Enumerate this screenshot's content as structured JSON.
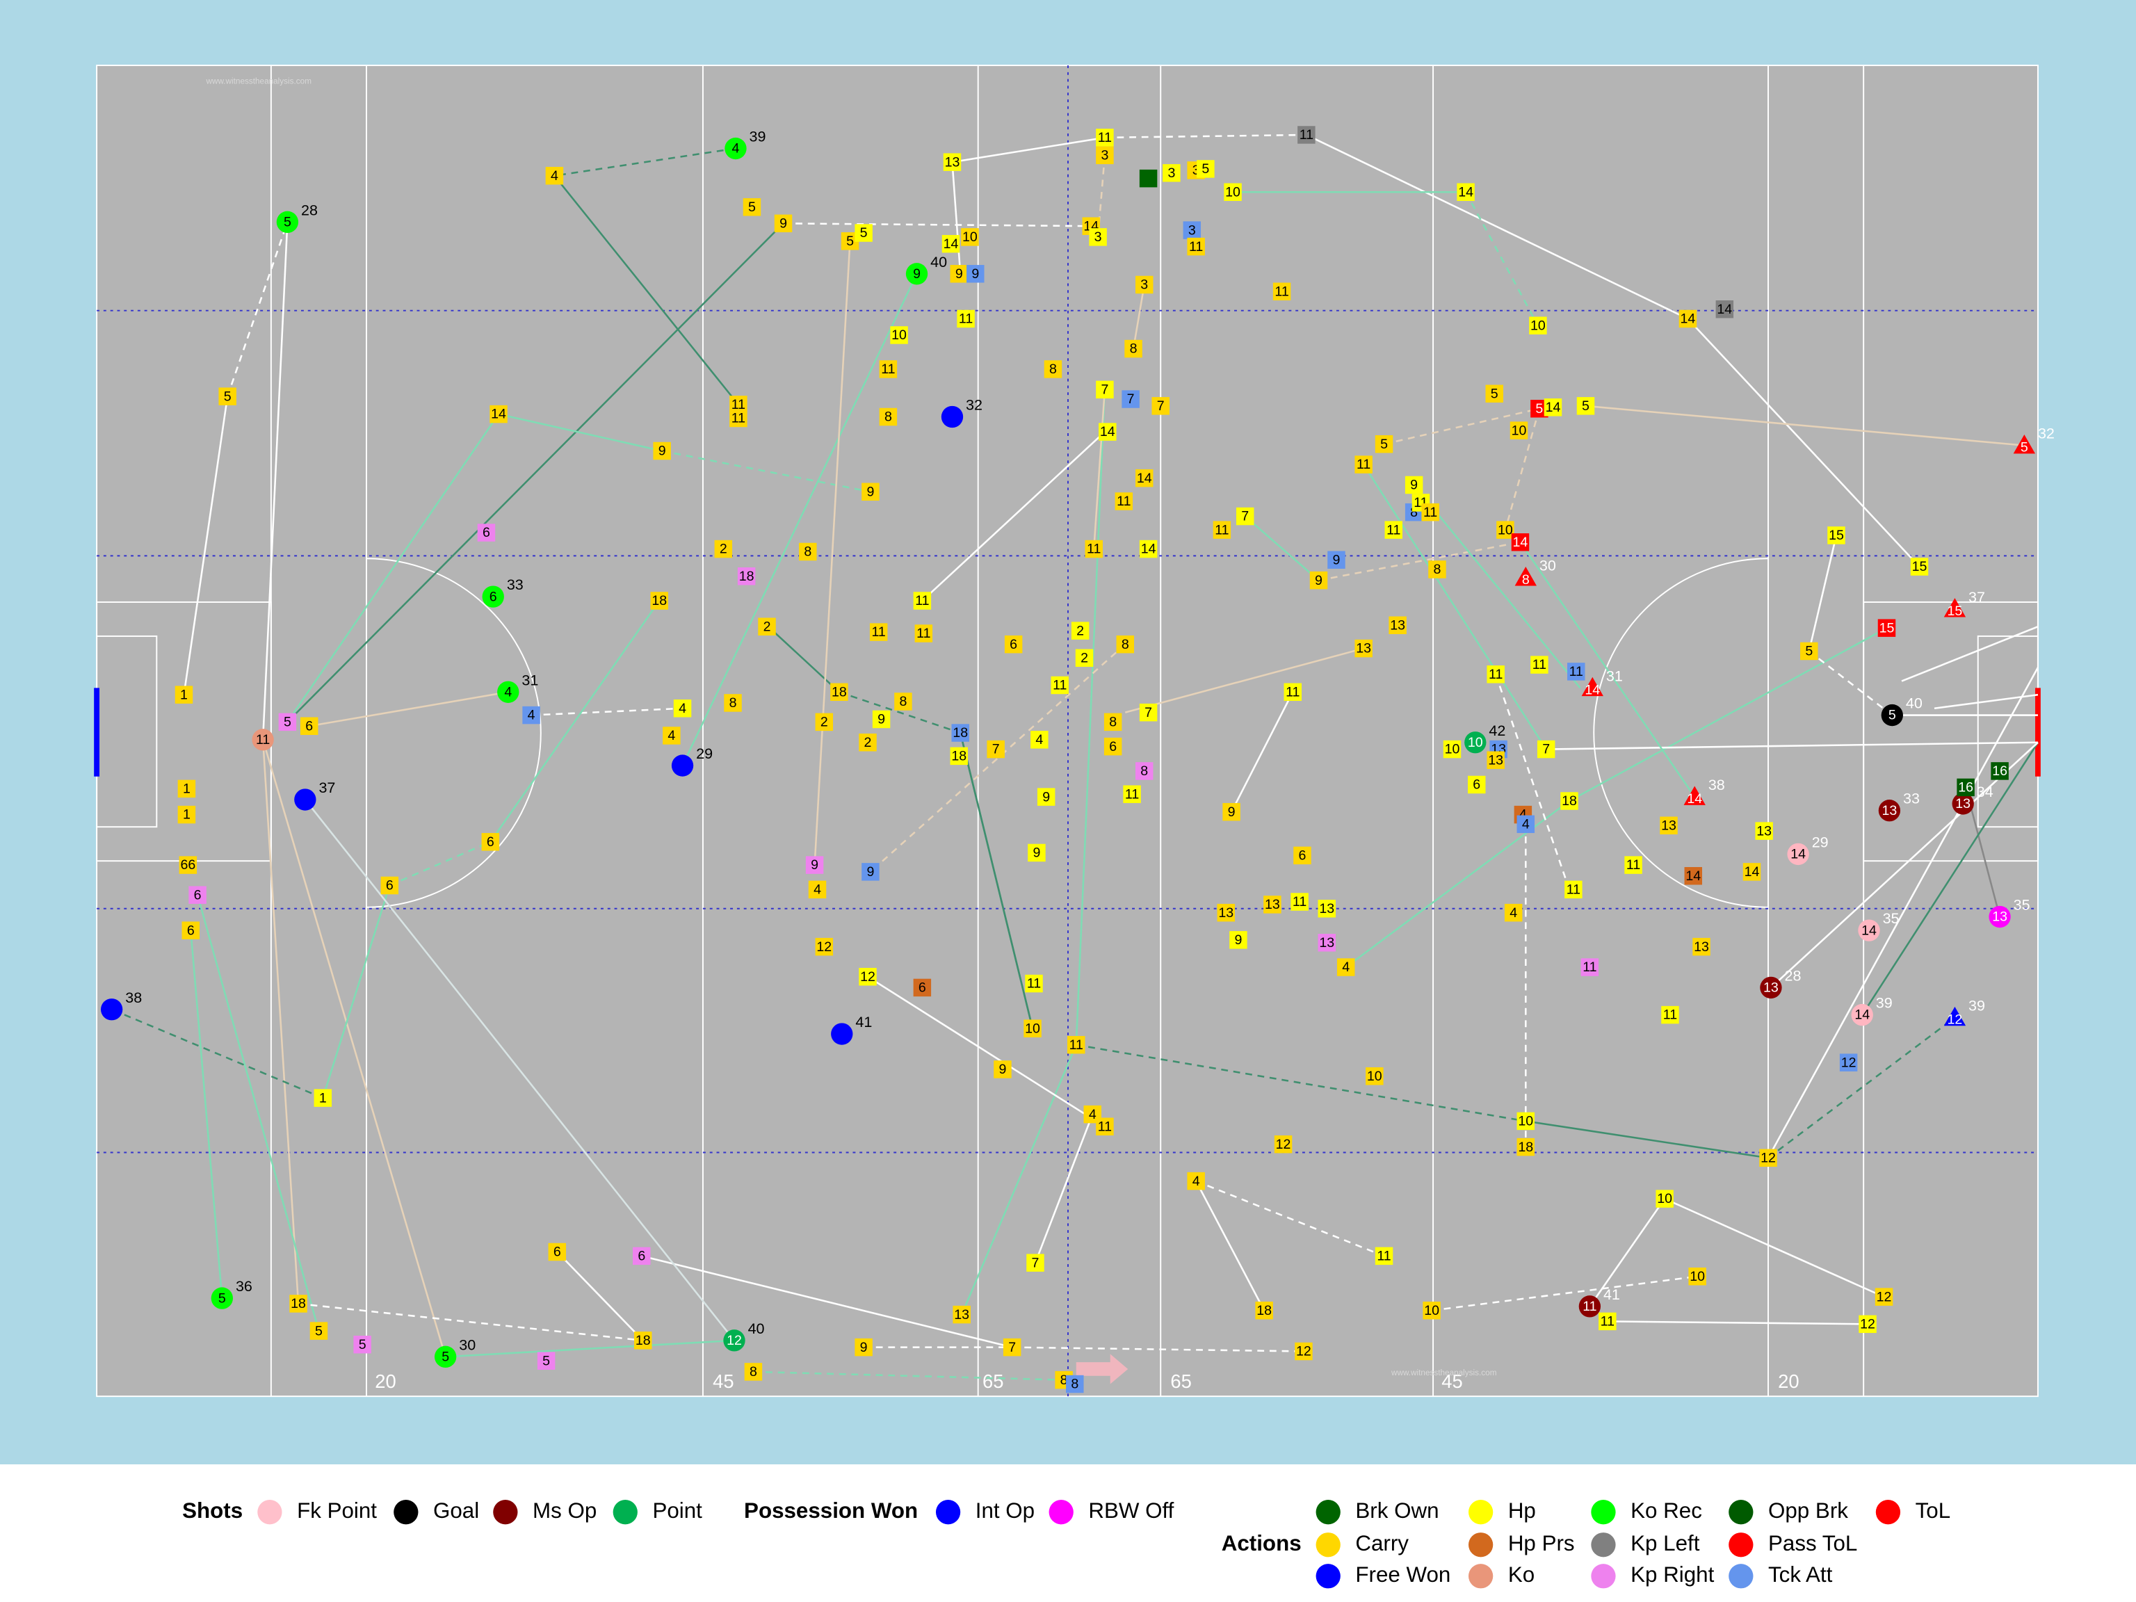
{
  "pitch_labels": [
    "20",
    "45",
    "65",
    "65",
    "45",
    "20"
  ],
  "watermarks": [
    "www.witnesstheanalysis.com",
    "www.witnesstheanalysis.com"
  ],
  "events": [
    {
      "label": "4",
      "color": "#00ff00",
      "minute": "39"
    },
    {
      "label": "4",
      "color": "#ffd700"
    },
    {
      "label": "5",
      "color": "#ffd700"
    },
    {
      "label": "9",
      "color": "#ffd700"
    },
    {
      "label": "5",
      "color": "#00ff00",
      "minute": "28"
    },
    {
      "label": "5",
      "color": "#ffd700"
    },
    {
      "label": "14",
      "color": "#ffd700"
    },
    {
      "label": "9",
      "color": "#ffd700"
    },
    {
      "label": "11",
      "color": "#ffd700"
    },
    {
      "label": "11",
      "color": "#ffd700"
    },
    {
      "label": "6",
      "color": "#ee82ee"
    },
    {
      "label": "6",
      "color": "#00ff00",
      "minute": "33"
    },
    {
      "label": "4",
      "color": "#00ff00",
      "minute": "31"
    },
    {
      "label": "4",
      "color": "#6495ed"
    },
    {
      "label": "1",
      "color": "#ffd700"
    },
    {
      "label": "5",
      "color": "#ee82ee"
    },
    {
      "label": "6",
      "color": "#ffd700"
    },
    {
      "label": "11",
      "color": "#e9967a"
    },
    {
      "color": "#0000ff",
      "minute": "37"
    },
    {
      "label": "1",
      "color": "#ffd700"
    },
    {
      "label": "1",
      "color": "#ffd700"
    },
    {
      "label": "66",
      "color": "#ffd700"
    },
    {
      "label": "6",
      "color": "#ee82ee"
    },
    {
      "label": "6",
      "color": "#ffd700"
    },
    {
      "color": "#0000ff",
      "minute": "38"
    },
    {
      "label": "1",
      "color": "#ffff00"
    },
    {
      "label": "6",
      "color": "#ffd700"
    },
    {
      "label": "6",
      "color": "#ffd700"
    },
    {
      "label": "18",
      "color": "#ffd700"
    },
    {
      "label": "2",
      "color": "#ffd700"
    },
    {
      "label": "18",
      "color": "#ee82ee"
    },
    {
      "label": "2",
      "color": "#ffd700"
    },
    {
      "label": "4",
      "color": "#ffff00"
    },
    {
      "label": "8",
      "color": "#ffd700"
    },
    {
      "label": "4",
      "color": "#ffd700"
    },
    {
      "color": "#0000ff",
      "minute": "29"
    },
    {
      "label": "18",
      "color": "#ffd700"
    },
    {
      "label": "2",
      "color": "#ffd700"
    },
    {
      "label": "9",
      "color": "#ffff00"
    },
    {
      "label": "8",
      "color": "#ffd700"
    },
    {
      "label": "2",
      "color": "#ffd700"
    },
    {
      "label": "18",
      "color": "#6495ed"
    },
    {
      "label": "18",
      "color": "#ffff00"
    },
    {
      "label": "7",
      "color": "#ffd700"
    },
    {
      "label": "4",
      "color": "#ffff00"
    },
    {
      "label": "9",
      "color": "#ee82ee"
    },
    {
      "label": "9",
      "color": "#6495ed"
    },
    {
      "label": "4",
      "color": "#ffd700"
    },
    {
      "label": "12",
      "color": "#ffd700"
    },
    {
      "label": "12",
      "color": "#ffff00"
    },
    {
      "label": "6",
      "color": "#d2691e"
    },
    {
      "color": "#0000ff",
      "minute": "41"
    },
    {
      "label": "9",
      "color": "#ffd700"
    },
    {
      "label": "10",
      "color": "#ffd700"
    },
    {
      "label": "11",
      "color": "#ffff00"
    },
    {
      "label": "9",
      "color": "#ffff00"
    },
    {
      "label": "9",
      "color": "#ffff00"
    },
    {
      "label": "11",
      "color": "#ffd700"
    },
    {
      "label": "4",
      "color": "#ffd700"
    },
    {
      "label": "11",
      "color": "#ffd700"
    },
    {
      "label": "7",
      "color": "#ffff00"
    },
    {
      "label": "7",
      "color": "#ffd700"
    },
    {
      "label": "13",
      "color": "#ffd700"
    },
    {
      "label": "6",
      "color": "#ffd700"
    },
    {
      "label": "6",
      "color": "#ee82ee"
    },
    {
      "label": "18",
      "color": "#ffd700"
    },
    {
      "label": "12",
      "color": "#00b050",
      "minute": "40"
    },
    {
      "label": "8",
      "color": "#ffd700"
    },
    {
      "label": "9",
      "color": "#ffd700"
    },
    {
      "label": "5",
      "color": "#00ff00",
      "minute": "30"
    },
    {
      "label": "5",
      "color": "#ee82ee"
    },
    {
      "label": "5",
      "color": "#ee82ee"
    },
    {
      "label": "5",
      "color": "#ffd700"
    },
    {
      "label": "18",
      "color": "#ffd700"
    },
    {
      "label": "5",
      "color": "#00ff00",
      "minute": "36"
    },
    {
      "label": "8",
      "color": "#ffd700"
    },
    {
      "label": "8",
      "color": "#6495ed"
    },
    {
      "label": "13",
      "color": "#ffff00"
    },
    {
      "label": "11",
      "color": "#ffff00"
    },
    {
      "label": "3",
      "color": "#ffd700"
    },
    {
      "color": "#006400"
    },
    {
      "label": "3",
      "color": "#ffff00"
    },
    {
      "label": "3",
      "color": "#ffd700"
    },
    {
      "label": "5",
      "color": "#ffff00"
    },
    {
      "label": "10",
      "color": "#ffff00"
    },
    {
      "label": "11",
      "color": "#808080"
    },
    {
      "label": "14",
      "color": "#ffff00"
    },
    {
      "label": "5",
      "color": "#ffd700"
    },
    {
      "label": "5",
      "color": "#ffff00"
    },
    {
      "label": "9",
      "color": "#00ff00",
      "minute": "40"
    },
    {
      "label": "14",
      "color": "#ffff00"
    },
    {
      "label": "10",
      "color": "#ffd700"
    },
    {
      "label": "9",
      "color": "#ffd700"
    },
    {
      "label": "9",
      "color": "#6495ed"
    },
    {
      "label": "14",
      "color": "#ffd700"
    },
    {
      "label": "3",
      "color": "#ffff00"
    },
    {
      "label": "3",
      "color": "#6495ed"
    },
    {
      "label": "11",
      "color": "#ffd700"
    },
    {
      "label": "3",
      "color": "#ffd700"
    },
    {
      "label": "11",
      "color": "#ffd700"
    },
    {
      "label": "11",
      "color": "#ffff00"
    },
    {
      "label": "10",
      "color": "#ffff00"
    },
    {
      "label": "11",
      "color": "#ffd700"
    },
    {
      "label": "8",
      "color": "#ffd700"
    },
    {
      "color": "#0000ff",
      "minute": "32"
    },
    {
      "label": "8",
      "color": "#ffd700"
    },
    {
      "label": "8",
      "color": "#ffd700"
    },
    {
      "label": "7",
      "color": "#ffff00"
    },
    {
      "label": "7",
      "color": "#6495ed"
    },
    {
      "label": "7",
      "color": "#ffd700"
    },
    {
      "label": "14",
      "color": "#ffff00"
    },
    {
      "label": "14",
      "color": "#ffd700"
    },
    {
      "label": "11",
      "color": "#ffd700"
    },
    {
      "label": "14",
      "color": "#ffff00"
    },
    {
      "label": "11",
      "color": "#ffd700"
    },
    {
      "label": "9",
      "color": "#ffd700"
    },
    {
      "label": "11",
      "color": "#ffff00"
    },
    {
      "label": "11",
      "color": "#ffd700"
    },
    {
      "label": "11",
      "color": "#ffd700"
    },
    {
      "label": "6",
      "color": "#ffd700"
    },
    {
      "label": "11",
      "color": "#ffff00"
    },
    {
      "label": "2",
      "color": "#ffff00"
    },
    {
      "label": "2",
      "color": "#ffff00"
    },
    {
      "label": "8",
      "color": "#ffd700"
    },
    {
      "label": "8",
      "color": "#ffd700"
    },
    {
      "label": "7",
      "color": "#ffff00"
    },
    {
      "label": "6",
      "color": "#ffd700"
    },
    {
      "label": "8",
      "color": "#ee82ee"
    },
    {
      "label": "11",
      "color": "#ffff00"
    },
    {
      "label": "8",
      "color": "#ffd700"
    },
    {
      "label": "11",
      "color": "#ffd700"
    },
    {
      "label": "7",
      "color": "#ffff00"
    },
    {
      "label": "9",
      "color": "#6495ed"
    },
    {
      "label": "9",
      "color": "#ffd700"
    },
    {
      "label": "11",
      "color": "#ffd700"
    },
    {
      "label": "5",
      "color": "#ffd700"
    },
    {
      "label": "9",
      "color": "#ffff00"
    },
    {
      "label": "8",
      "color": "#6495ed"
    },
    {
      "label": "11",
      "color": "#ffff00"
    },
    {
      "label": "11",
      "color": "#ffd700"
    },
    {
      "label": "11",
      "color": "#ffff00"
    },
    {
      "label": "8",
      "color": "#ffd700"
    },
    {
      "label": "10",
      "color": "#ffff00"
    },
    {
      "label": "5",
      "color": "#ffd700"
    },
    {
      "label": "5",
      "color": "#ff0000"
    },
    {
      "label": "14",
      "color": "#ffff00"
    },
    {
      "label": "5",
      "color": "#ffff00"
    },
    {
      "label": "10",
      "color": "#ffd700"
    },
    {
      "label": "10",
      "color": "#ffd700"
    },
    {
      "label": "14",
      "color": "#ff0000"
    },
    {
      "label": "8",
      "color": "#ff0000",
      "minute": "30"
    },
    {
      "label": "5",
      "color": "#ff0000",
      "minute": "32"
    },
    {
      "label": "14",
      "color": "#ffd700"
    },
    {
      "label": "14",
      "color": "#808080"
    },
    {
      "label": "15",
      "color": "#ffff00"
    },
    {
      "label": "15",
      "color": "#ffff00"
    },
    {
      "label": "5",
      "color": "#ffd700"
    },
    {
      "label": "15",
      "color": "#ff0000"
    },
    {
      "label": "15",
      "color": "#ff0000",
      "minute": "37"
    },
    {
      "label": "5",
      "color": "#000000",
      "minute": "40"
    },
    {
      "label": "13",
      "color": "#ffd700"
    },
    {
      "label": "13",
      "color": "#ffd700"
    },
    {
      "label": "11",
      "color": "#ffff00"
    },
    {
      "label": "11",
      "color": "#ffff00"
    },
    {
      "label": "11",
      "color": "#ffff00"
    },
    {
      "label": "11",
      "color": "#6495ed"
    },
    {
      "label": "14",
      "color": "#ff0000",
      "minute": "31"
    },
    {
      "label": "10",
      "color": "#00b050",
      "minute": "42"
    },
    {
      "label": "10",
      "color": "#ffff00"
    },
    {
      "label": "13",
      "color": "#6495ed"
    },
    {
      "label": "13",
      "color": "#ffd700"
    },
    {
      "label": "7",
      "color": "#ffff00"
    },
    {
      "label": "6",
      "color": "#ffff00"
    },
    {
      "label": "4",
      "color": "#d2691e"
    },
    {
      "label": "4",
      "color": "#6495ed"
    },
    {
      "label": "18",
      "color": "#ffff00"
    },
    {
      "label": "14",
      "color": "#ff0000",
      "minute": "38"
    },
    {
      "label": "9",
      "color": "#ffd700"
    },
    {
      "label": "6",
      "color": "#ffd700"
    },
    {
      "label": "13",
      "color": "#ffd700"
    },
    {
      "label": "13",
      "color": "#ffd700"
    },
    {
      "label": "11",
      "color": "#ffff00"
    },
    {
      "label": "13",
      "color": "#ffff00"
    },
    {
      "label": "9",
      "color": "#ffff00"
    },
    {
      "label": "13",
      "color": "#ee82ee"
    },
    {
      "label": "4",
      "color": "#ffd700"
    },
    {
      "label": "4",
      "color": "#ffd700"
    },
    {
      "label": "11",
      "color": "#ffff00"
    },
    {
      "label": "11",
      "color": "#ffff00"
    },
    {
      "label": "13",
      "color": "#ffd700"
    },
    {
      "label": "14",
      "color": "#d2691e"
    },
    {
      "label": "14",
      "color": "#ffd700"
    },
    {
      "label": "13",
      "color": "#ffff00"
    },
    {
      "label": "14",
      "color": "#ffb6c1",
      "minute": "29"
    },
    {
      "label": "13",
      "color": "#8b0000",
      "minute": "33"
    },
    {
      "label": "13",
      "color": "#8b0000",
      "minute": "34"
    },
    {
      "label": "16",
      "color": "#005a00"
    },
    {
      "label": "16",
      "color": "#005a00"
    },
    {
      "label": "11",
      "color": "#ee82ee"
    },
    {
      "label": "11",
      "color": "#ffff00"
    },
    {
      "label": "13",
      "color": "#ffd700"
    },
    {
      "label": "13",
      "color": "#8b0000",
      "minute": "28"
    },
    {
      "label": "14",
      "color": "#ffb6c1",
      "minute": "35"
    },
    {
      "label": "13",
      "color": "#ff00ff",
      "minute": "35"
    },
    {
      "label": "14",
      "color": "#ffb6c1",
      "minute": "39"
    },
    {
      "label": "12",
      "color": "#0000ff",
      "minute": "39"
    },
    {
      "label": "12",
      "color": "#6495ed"
    },
    {
      "label": "10",
      "color": "#ffd700"
    },
    {
      "label": "10",
      "color": "#ffff00"
    },
    {
      "label": "18",
      "color": "#ffd700"
    },
    {
      "label": "12",
      "color": "#ffd700"
    },
    {
      "label": "12",
      "color": "#ffd700"
    },
    {
      "label": "4",
      "color": "#ffd700"
    },
    {
      "label": "10",
      "color": "#ffff00"
    },
    {
      "label": "10",
      "color": "#ffd700"
    },
    {
      "label": "11",
      "color": "#8b0000",
      "minute": "41"
    },
    {
      "label": "11",
      "color": "#ffff00"
    },
    {
      "label": "12",
      "color": "#ffd700"
    },
    {
      "label": "12",
      "color": "#ffff00"
    },
    {
      "label": "18",
      "color": "#ffd700"
    },
    {
      "label": "11",
      "color": "#ffff00"
    },
    {
      "label": "10",
      "color": "#ffd700"
    },
    {
      "label": "12",
      "color": "#ffd700"
    }
  ],
  "legend": [
    {
      "title": "Shots",
      "items": [
        {
          "name": "Fk Point",
          "color": "#ffc0cb"
        },
        {
          "name": "Goal",
          "color": "#000000"
        },
        {
          "name": "Ms Op",
          "color": "#800000"
        },
        {
          "name": "Point",
          "color": "#00b050"
        }
      ]
    },
    {
      "title": "Possession Won",
      "items": [
        {
          "name": "Int Op",
          "color": "#0000ff"
        },
        {
          "name": "RBW Off",
          "color": "#ff00ff"
        }
      ]
    },
    {
      "title": "Actions",
      "items": [
        {
          "name": "Brk Own",
          "color": "#006400"
        },
        {
          "name": "Carry",
          "color": "#ffd700"
        },
        {
          "name": "Free Won",
          "color": "#0000ff"
        },
        {
          "name": "Hp",
          "color": "#ffff00"
        },
        {
          "name": "Hp Prs",
          "color": "#d2691e"
        },
        {
          "name": "Ko",
          "color": "#e9967a"
        },
        {
          "name": "Ko Rec",
          "color": "#00ff00"
        },
        {
          "name": "Kp Left",
          "color": "#808080"
        },
        {
          "name": "Kp Right",
          "color": "#ee82ee"
        },
        {
          "name": "Opp Brk",
          "color": "#005a00"
        },
        {
          "name": "Pass ToL",
          "color": "#ff0000"
        },
        {
          "name": "Tck Att",
          "color": "#6495ed"
        },
        {
          "name": "ToL",
          "color": "#ff0000"
        }
      ]
    }
  ]
}
